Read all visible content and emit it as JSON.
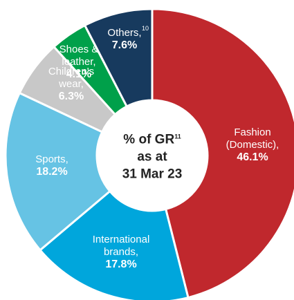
{
  "chart_data": {
    "type": "donut",
    "categories": [
      "Fashion (Domestic),",
      "International brands,",
      "Sports,",
      "Children's wear,",
      "Shoes & leather,",
      "Others,"
    ],
    "values": [
      46.1,
      17.8,
      18.2,
      6.3,
      4.1,
      7.6
    ],
    "value_labels": [
      "46.1%",
      "17.8%",
      "18.2%",
      "6.3%",
      "4.1%",
      "7.6%"
    ],
    "colors": [
      "#c0282d",
      "#00a6dc",
      "#66c3e4",
      "#c8c8c8",
      "#00a04a",
      "#173a5e"
    ],
    "note_marker": "10",
    "center_text": [
      "% of GR",
      "as at",
      "31 Mar 23"
    ],
    "center_note": "11"
  }
}
